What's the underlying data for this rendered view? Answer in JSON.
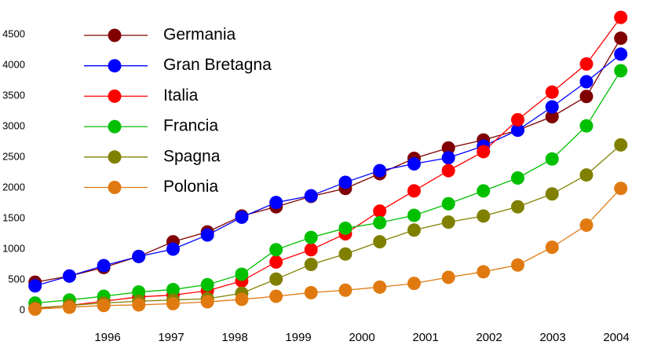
{
  "chart_data": {
    "type": "line",
    "x": [
      1994.86,
      1995.4,
      1995.94,
      1996.49,
      1997.03,
      1997.57,
      1998.11,
      1998.65,
      1999.2,
      1999.74,
      2000.28,
      2000.82,
      2001.36,
      2001.91,
      2002.45,
      2002.99,
      2003.53,
      2004.07
    ],
    "series": [
      {
        "name": "Germania",
        "color": "#800000",
        "values": [
          460,
          560,
          700,
          880,
          1120,
          1280,
          1540,
          1690,
          1860,
          1990,
          2230,
          2480,
          2650,
          2780,
          2940,
          3160,
          3490,
          4440
        ]
      },
      {
        "name": "Gran Bretagna",
        "color": "#0000ff",
        "values": [
          400,
          560,
          730,
          880,
          1000,
          1230,
          1520,
          1760,
          1870,
          2090,
          2280,
          2390,
          2490,
          2680,
          2940,
          3320,
          3730,
          4180
        ]
      },
      {
        "name": "Italia",
        "color": "#ff0000",
        "values": [
          30,
          80,
          150,
          220,
          250,
          320,
          480,
          790,
          990,
          1250,
          1620,
          1950,
          2280,
          2590,
          3110,
          3560,
          4020,
          4780
        ]
      },
      {
        "name": "Francia",
        "color": "#00c000",
        "values": [
          120,
          170,
          230,
          300,
          340,
          420,
          590,
          990,
          1190,
          1340,
          1430,
          1550,
          1740,
          1950,
          2160,
          2470,
          3010,
          3910
        ]
      },
      {
        "name": "Spagna",
        "color": "#808000",
        "values": [
          40,
          80,
          120,
          150,
          170,
          190,
          280,
          510,
          750,
          920,
          1120,
          1310,
          1440,
          1540,
          1690,
          1900,
          2210,
          2700
        ]
      },
      {
        "name": "Polonia",
        "color": "#e07a10",
        "values": [
          20,
          50,
          80,
          90,
          110,
          140,
          180,
          230,
          290,
          330,
          380,
          440,
          540,
          630,
          740,
          1030,
          1390,
          1990
        ]
      }
    ],
    "xlim": [
      1994.7,
      2004.25
    ],
    "xticks": [
      1996,
      1997,
      1998,
      1999,
      2000,
      2001,
      2002,
      2003,
      2004
    ],
    "ylim": [
      -130,
      4870
    ],
    "yticks": [
      0,
      500,
      1000,
      1500,
      2000,
      2500,
      3000,
      3500,
      4000,
      4500
    ],
    "grid": false,
    "legend": "upper left"
  }
}
